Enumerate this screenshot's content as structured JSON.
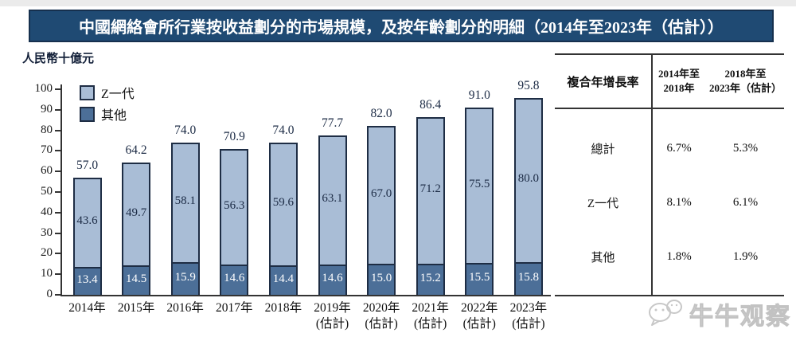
{
  "title": "中國網絡會所行業按收益劃分的市場規模，及按年齡劃分的明細（2014年至2023年（估計））",
  "y_axis_unit": "人民幣十億元",
  "legend": [
    {
      "label": "Z一代",
      "color": "#A9BDD6"
    },
    {
      "label": "其他",
      "color": "#4C6F98"
    }
  ],
  "chart_data": {
    "type": "bar",
    "stacked": true,
    "title": "中國網絡會所行業按收益劃分的市場規模，及按年齡劃分的明細（2014年至2023年（估計））",
    "ylabel": "人民幣十億元",
    "ylim": [
      0,
      100
    ],
    "ytick_step": 10,
    "grid": false,
    "legend_position": "top-left",
    "categories": [
      [
        "2014年"
      ],
      [
        "2015年"
      ],
      [
        "2016年"
      ],
      [
        "2017年"
      ],
      [
        "2018年"
      ],
      [
        "2019年",
        "(估計)"
      ],
      [
        "2020年",
        "(估計)"
      ],
      [
        "2021年",
        "(估計)"
      ],
      [
        "2022年",
        "(估計)"
      ],
      [
        "2023年",
        "(估計)"
      ]
    ],
    "series": [
      {
        "name": "Z一代",
        "color": "#A9BDD6",
        "text_color": "#1C2B45",
        "values": [
          43.6,
          49.7,
          58.1,
          56.3,
          59.6,
          63.1,
          67.0,
          71.2,
          75.5,
          80.0
        ]
      },
      {
        "name": "其他",
        "color": "#4C6F98",
        "text_color": "#FFFFFF",
        "values": [
          13.4,
          14.5,
          15.9,
          14.6,
          14.4,
          14.6,
          15.0,
          15.2,
          15.5,
          15.8
        ]
      }
    ],
    "totals": [
      57.0,
      64.2,
      74.0,
      70.9,
      74.0,
      77.7,
      82.0,
      86.4,
      91.0,
      95.8
    ]
  },
  "cagr_table": {
    "title": "複合年增長率",
    "col_headers": [
      [
        "2014年至",
        "2018年"
      ],
      [
        "2018年至",
        "2023年（估計）"
      ]
    ],
    "rows": [
      {
        "label": "總計",
        "values": [
          "6.7%",
          "5.3%"
        ]
      },
      {
        "label": "Z一代",
        "values": [
          "8.1%",
          "6.1%"
        ]
      },
      {
        "label": "其他",
        "values": [
          "1.8%",
          "1.9%"
        ]
      }
    ]
  },
  "watermark": {
    "text": "牛牛观察",
    "icon": "wechat-icon"
  },
  "colors": {
    "title_bar": "#1F4A73",
    "axis": "#333333",
    "bar_border": "#1E2D44",
    "bar_light": "#A9BDD6",
    "bar_dark": "#4C6F98",
    "label_dark": "#1C2B45"
  }
}
